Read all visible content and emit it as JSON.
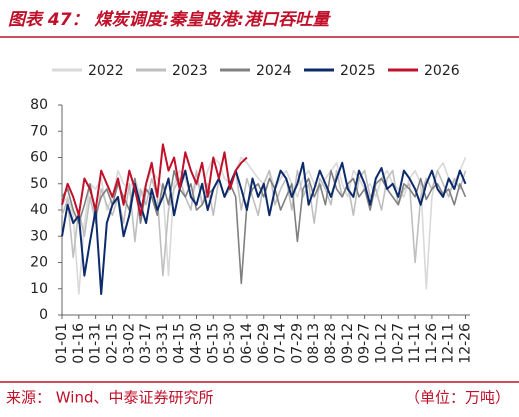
{
  "chart_data": {
    "type": "line",
    "title": "图表 47：  煤炭调度:秦皇岛港:港口吞吐量",
    "source": "来源：  Wind、中泰证券研究所",
    "unit_note": "（单位：万吨）",
    "x": [
      0,
      5,
      10,
      15,
      20,
      25,
      30,
      35,
      40,
      45,
      50,
      55,
      60,
      65,
      70,
      75,
      80,
      85,
      90,
      95,
      100,
      105,
      110,
      115,
      120,
      125,
      130,
      135,
      140,
      145,
      150,
      155,
      160,
      165,
      170,
      175,
      180,
      185,
      190,
      195,
      200,
      205,
      210,
      215,
      220,
      225,
      230,
      235,
      240,
      245,
      250,
      255,
      260,
      265,
      270,
      275,
      280,
      285,
      290,
      295,
      300,
      305,
      310,
      315,
      320,
      325,
      330,
      335,
      340,
      345,
      350,
      355,
      360
    ],
    "xlim": [
      0,
      364
    ],
    "xticks": [
      {
        "value": 0,
        "label": "01-01"
      },
      {
        "value": 15,
        "label": "01-16"
      },
      {
        "value": 30,
        "label": "01-31"
      },
      {
        "value": 45,
        "label": "02-15"
      },
      {
        "value": 60,
        "label": "03-02"
      },
      {
        "value": 75,
        "label": "03-17"
      },
      {
        "value": 90,
        "label": "03-31"
      },
      {
        "value": 105,
        "label": "04-15"
      },
      {
        "value": 120,
        "label": "04-30"
      },
      {
        "value": 135,
        "label": "05-15"
      },
      {
        "value": 150,
        "label": "05-30"
      },
      {
        "value": 165,
        "label": "06-14"
      },
      {
        "value": 180,
        "label": "06-29"
      },
      {
        "value": 195,
        "label": "07-14"
      },
      {
        "value": 210,
        "label": "07-29"
      },
      {
        "value": 225,
        "label": "08-13"
      },
      {
        "value": 240,
        "label": "08-28"
      },
      {
        "value": 255,
        "label": "09-12"
      },
      {
        "value": 270,
        "label": "09-27"
      },
      {
        "value": 285,
        "label": "10-12"
      },
      {
        "value": 300,
        "label": "10-27"
      },
      {
        "value": 315,
        "label": "11-11"
      },
      {
        "value": 330,
        "label": "11-26"
      },
      {
        "value": 345,
        "label": "12-11"
      },
      {
        "value": 360,
        "label": "12-26"
      }
    ],
    "ylim": [
      0,
      80
    ],
    "yticks": [
      0,
      10,
      20,
      30,
      40,
      50,
      60,
      70,
      80
    ],
    "series": [
      {
        "name": "2022",
        "color": "#d9d9d9",
        "values": [
          42,
          45,
          38,
          8,
          35,
          50,
          48,
          52,
          40,
          45,
          55,
          50,
          48,
          52,
          45,
          50,
          55,
          52,
          48,
          15,
          50,
          55,
          52,
          45,
          50,
          48,
          55,
          60,
          58,
          52,
          50,
          55,
          60,
          58,
          55,
          52,
          50,
          55,
          48,
          52,
          55,
          50,
          45,
          52,
          55,
          50,
          48,
          52,
          55,
          58,
          50,
          45,
          55,
          52,
          48,
          50,
          45,
          52,
          55,
          50,
          48,
          45,
          52,
          55,
          50,
          10,
          45,
          55,
          58,
          52,
          50,
          55,
          60
        ]
      },
      {
        "name": "2023",
        "color": "#bfbfbf",
        "values": [
          38,
          44,
          22,
          40,
          30,
          45,
          35,
          48,
          42,
          38,
          45,
          35,
          50,
          28,
          48,
          42,
          52,
          45,
          15,
          40,
          48,
          52,
          45,
          40,
          55,
          42,
          50,
          38,
          52,
          45,
          48,
          55,
          40,
          52,
          45,
          38,
          50,
          55,
          42,
          48,
          52,
          40,
          55,
          45,
          50,
          35,
          52,
          48,
          42,
          55,
          45,
          50,
          38,
          52,
          55,
          45,
          48,
          40,
          52,
          55,
          42,
          48,
          50,
          20,
          45,
          52,
          48,
          55,
          50,
          45,
          52,
          48,
          55
        ]
      },
      {
        "name": "2024",
        "color": "#808080",
        "values": [
          45,
          48,
          40,
          35,
          42,
          50,
          38,
          45,
          48,
          42,
          50,
          45,
          40,
          52,
          35,
          48,
          45,
          38,
          50,
          42,
          55,
          48,
          45,
          50,
          40,
          42,
          46,
          48,
          52,
          45,
          50,
          45,
          12,
          42,
          48,
          50,
          45,
          52,
          48,
          40,
          45,
          50,
          28,
          48,
          52,
          45,
          50,
          42,
          55,
          48,
          45,
          50,
          52,
          45,
          48,
          40,
          50,
          52,
          48,
          45,
          42,
          50,
          48,
          45,
          52,
          44,
          48,
          50,
          46,
          48,
          42,
          50,
          45
        ]
      },
      {
        "name": "2025",
        "color": "#0d2a6b",
        "values": [
          30,
          42,
          35,
          38,
          15,
          28,
          40,
          8,
          35,
          42,
          45,
          30,
          38,
          50,
          42,
          35,
          48,
          40,
          45,
          52,
          38,
          48,
          55,
          45,
          42,
          50,
          40,
          48,
          52,
          45,
          50,
          55,
          48,
          40,
          52,
          45,
          50,
          38,
          48,
          55,
          52,
          45,
          50,
          58,
          42,
          48,
          55,
          50,
          45,
          52,
          58,
          48,
          45,
          55,
          50,
          42,
          52,
          56,
          48,
          50,
          45,
          55,
          52,
          48,
          42,
          50,
          55,
          48,
          45,
          52,
          48,
          55,
          50
        ]
      },
      {
        "name": "2026",
        "color": "#c0102a",
        "values": [
          42,
          50,
          45,
          38,
          52,
          48,
          40,
          55,
          50,
          45,
          52,
          42,
          55,
          48,
          38,
          50,
          58,
          45,
          65,
          55,
          60,
          48,
          62,
          55,
          50,
          58,
          45,
          60,
          52,
          62,
          48,
          55,
          58,
          60,
          null,
          null,
          null,
          null,
          null,
          null,
          null,
          null,
          null,
          null,
          null,
          null,
          null,
          null,
          null,
          null,
          null,
          null,
          null,
          null,
          null,
          null,
          null,
          null,
          null,
          null,
          null,
          null,
          null,
          null,
          null,
          null,
          null,
          null,
          null,
          null,
          null,
          null,
          null
        ]
      }
    ]
  }
}
